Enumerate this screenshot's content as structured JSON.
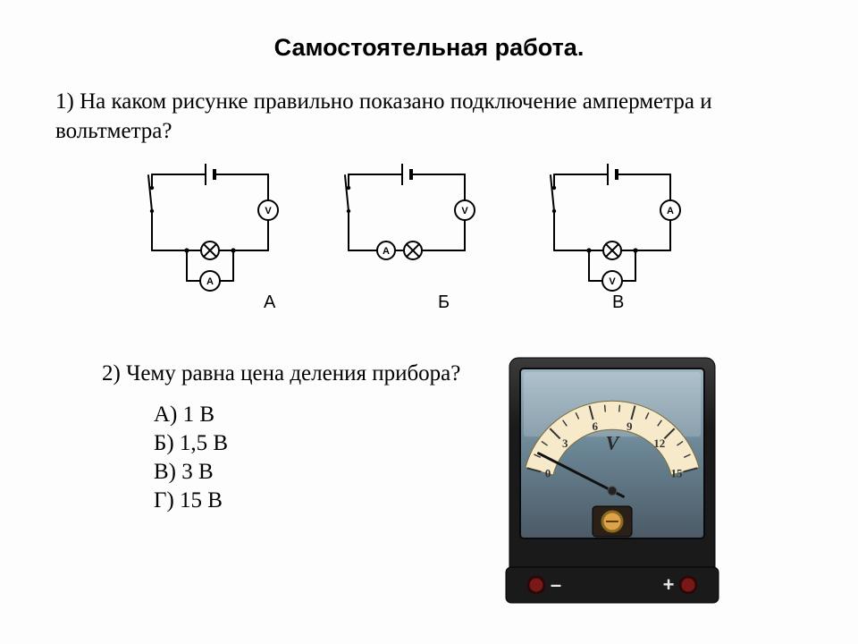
{
  "title": "Самостоятельная работа.",
  "q1_text": "1) На каком рисунке правильно показано подключение амперметра и вольтметра?",
  "q2_text": "2) Чему равна цена деления прибора?",
  "answers": {
    "a": "А) 1 В",
    "b": "Б) 1,5 В",
    "c": "В) 3 В",
    "d": "Г) 15 В"
  },
  "schematics": {
    "labels": {
      "a": "А",
      "b": "Б",
      "c": "В"
    },
    "style": {
      "line_color": "#000000",
      "line_width": 2,
      "meter_font_family": "Arial",
      "meter_font_size": 11,
      "lamp_fill": "none"
    },
    "circuits": {
      "A": {
        "series_meter_label": "V",
        "parallel_meter_label": "A",
        "layout": "parallel_below"
      },
      "B": {
        "series_meter_label": "A",
        "parallel_meter_label": "V",
        "layout": "series_left_parallel_right"
      },
      "C": {
        "series_meter_label": "A",
        "parallel_meter_label": "V",
        "layout": "parallel_below"
      }
    }
  },
  "voltmeter_device": {
    "case_color": "#1a1a1a",
    "case_highlight": "#3b3b3b",
    "panel_color": "#4b5a66",
    "panel_color_light": "#9fb6c4",
    "panel_color_mid": "#6c8796",
    "dial_bg": "#f6eacb",
    "dial_mark_color": "#333333",
    "needle_color": "#111111",
    "screw_color": "#dda24a",
    "screw_ring": "#8a6a20",
    "terminal_color": "#7a1818",
    "terminal_ring": "#2a0808",
    "minus_label": "–",
    "plus_label": "+",
    "unit_label": "V",
    "scale_numbers": [
      "0",
      "3",
      "6",
      "9",
      "12",
      "15"
    ],
    "needle_value": 1.2,
    "scale_min": 0,
    "scale_max": 15,
    "scale_start_angle": -75,
    "scale_end_angle": 75,
    "tick_major_count": 6,
    "tick_minor_per_major": 2,
    "body_width": 230,
    "body_height": 280
  }
}
